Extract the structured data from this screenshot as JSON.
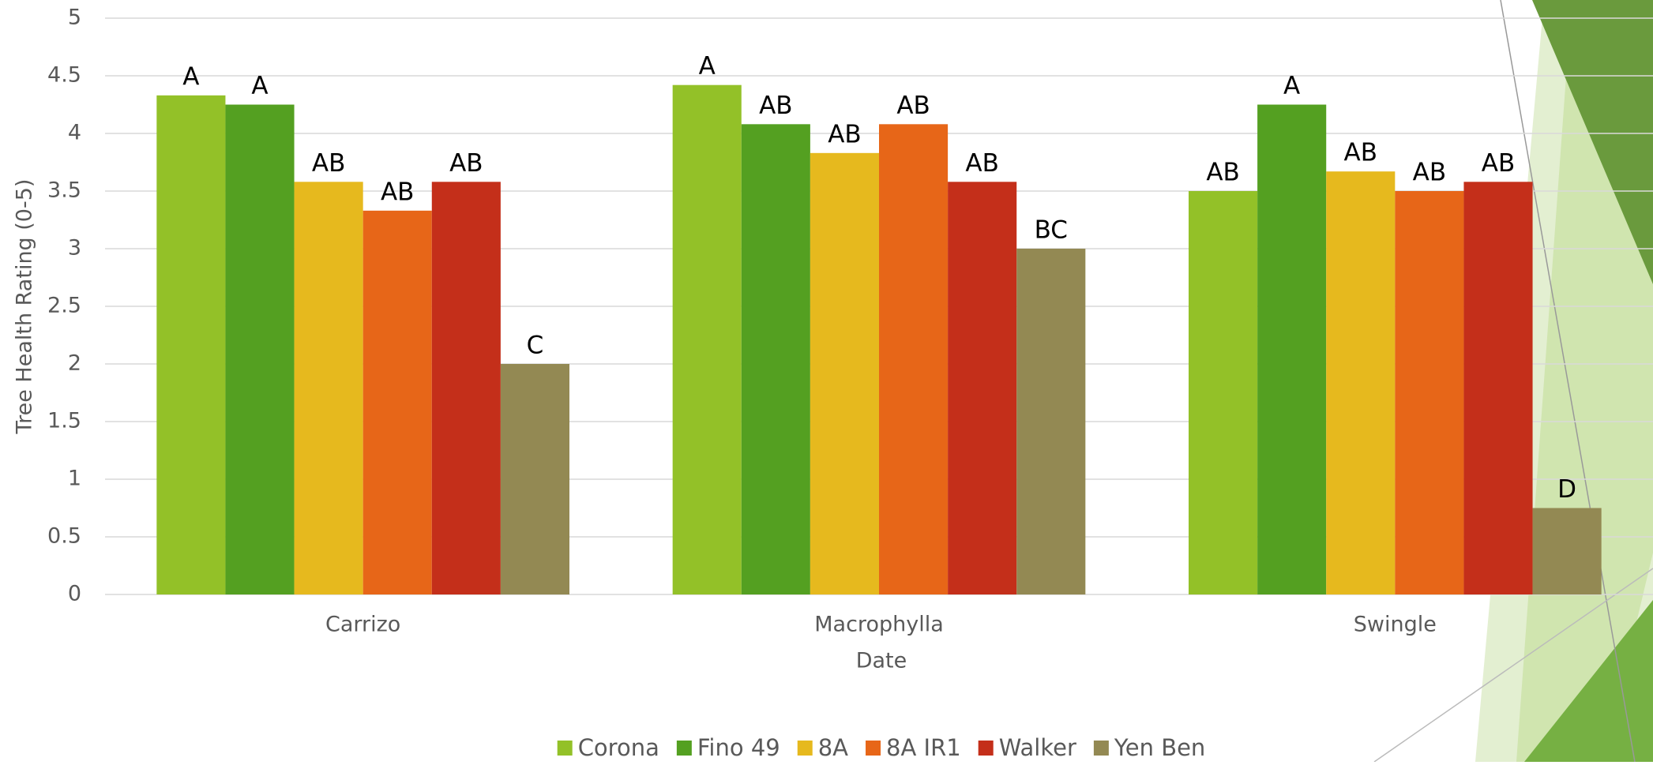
{
  "chart_data": {
    "type": "bar",
    "y_label": "Tree Health Rating (0-5)",
    "x_label": "Date",
    "categories": [
      "Carrizo",
      "Macrophylla",
      "Swingle"
    ],
    "series": [
      {
        "name": "Corona",
        "color": "#93c128",
        "values": [
          4.33,
          4.42,
          3.5
        ],
        "significance": [
          "A",
          "A",
          "AB"
        ]
      },
      {
        "name": "Fino 49",
        "color": "#54a021",
        "values": [
          4.25,
          4.08,
          4.25
        ],
        "significance": [
          "A",
          "AB",
          "A"
        ]
      },
      {
        "name": "8A",
        "color": "#e6b91e",
        "values": [
          3.58,
          3.83,
          3.67
        ],
        "significance": [
          "AB",
          "AB",
          "AB"
        ]
      },
      {
        "name": "8A IR1",
        "color": "#e76618",
        "values": [
          3.33,
          4.08,
          3.5
        ],
        "significance": [
          "AB",
          "AB",
          "AB"
        ]
      },
      {
        "name": "Walker",
        "color": "#c42f1a",
        "values": [
          3.58,
          3.58,
          3.58
        ],
        "significance": [
          "AB",
          "AB",
          "AB"
        ]
      },
      {
        "name": "Yen Ben",
        "color": "#938953",
        "values": [
          2.0,
          3.0,
          0.75
        ],
        "significance": [
          "C",
          "BC",
          "D"
        ]
      }
    ],
    "ylim": [
      0,
      5
    ],
    "yticks": [
      0,
      0.5,
      1,
      1.5,
      2,
      2.5,
      3,
      3.5,
      4,
      4.5,
      5
    ],
    "grid": true,
    "legend": "bottom"
  }
}
